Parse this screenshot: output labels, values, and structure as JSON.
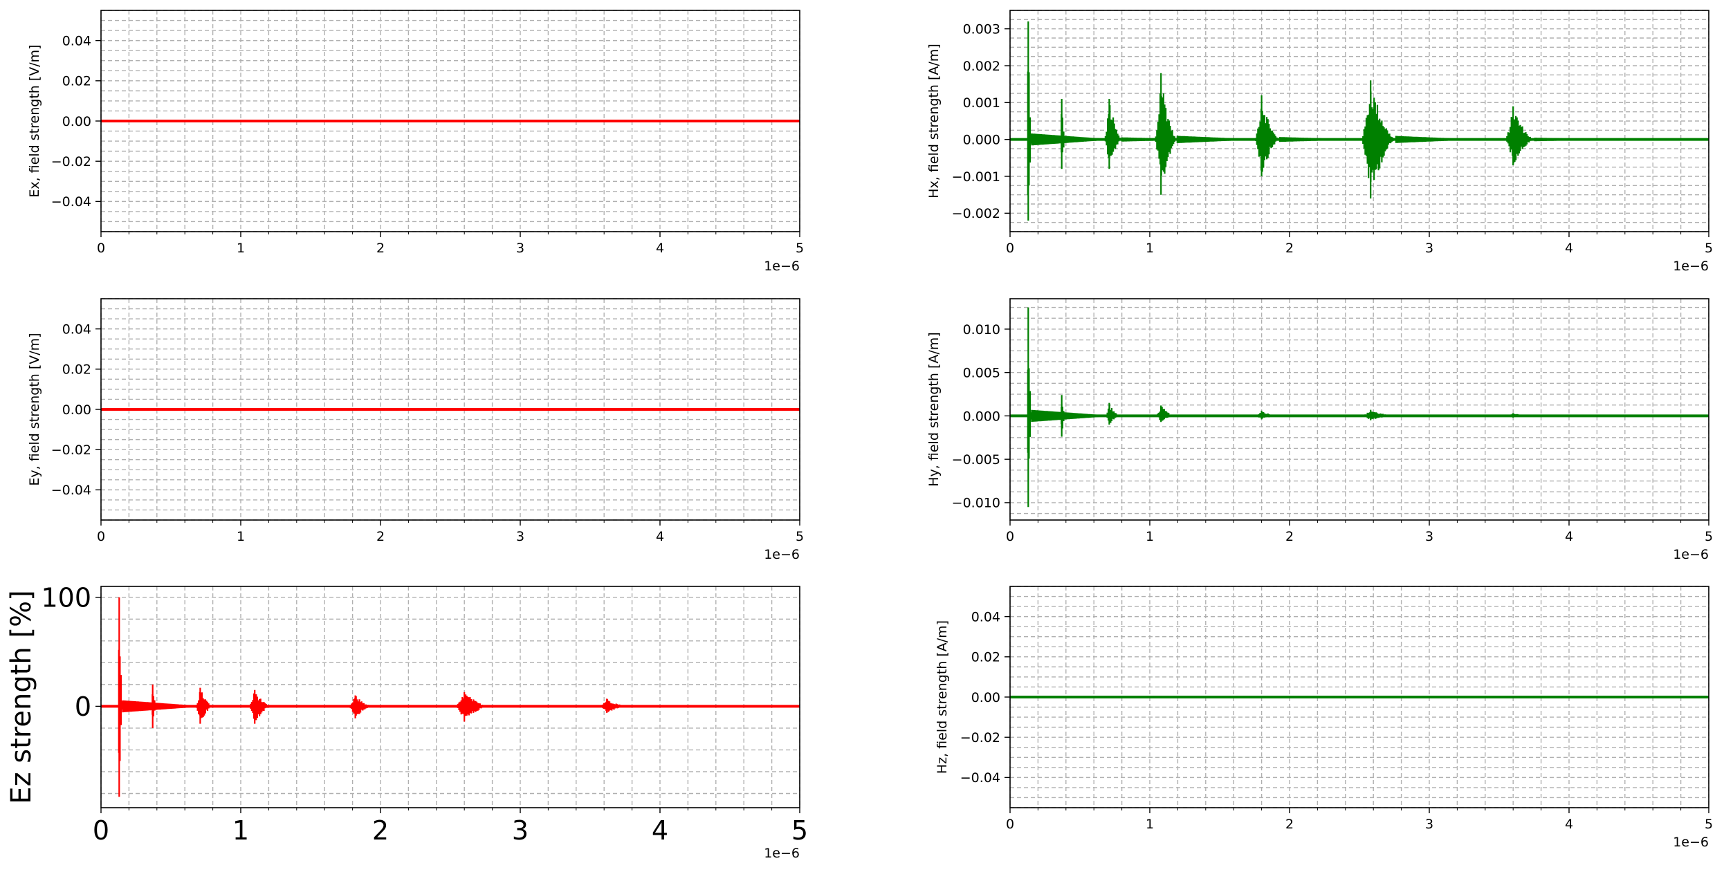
{
  "chart_data": [
    {
      "type": "line",
      "ylabel": "Ex, field strength [V/m]",
      "xlabel": "",
      "x_offset_text": "1e−6",
      "xlim": [
        0,
        5
      ],
      "ylim": [
        -0.055,
        0.055
      ],
      "xticks": [
        "0",
        "1",
        "2",
        "3",
        "4",
        "5"
      ],
      "yticks": [
        {
          "v": 0.04,
          "label": "0.04"
        },
        {
          "v": 0.02,
          "label": "0.02"
        },
        {
          "v": 0.0,
          "label": "0.00"
        },
        {
          "v": -0.02,
          "label": "−0.02"
        },
        {
          "v": -0.04,
          "label": "−0.04"
        }
      ],
      "grid": true,
      "color": "#ff0000",
      "series": [
        {
          "x": [
            0,
            5
          ],
          "y": [
            0,
            0
          ]
        }
      ],
      "bursts": []
    },
    {
      "type": "line",
      "ylabel": "Hx, field strength [A/m]",
      "xlabel": "",
      "x_offset_text": "1e−6",
      "xlim": [
        0,
        5
      ],
      "ylim": [
        -0.0025,
        0.0035
      ],
      "xticks": [
        "0",
        "1",
        "2",
        "3",
        "4",
        "5"
      ],
      "yticks": [
        {
          "v": 0.003,
          "label": "0.003"
        },
        {
          "v": 0.002,
          "label": "0.002"
        },
        {
          "v": 0.001,
          "label": "0.001"
        },
        {
          "v": 0.0,
          "label": "0.000"
        },
        {
          "v": -0.001,
          "label": "−0.001"
        },
        {
          "v": -0.002,
          "label": "−0.002"
        }
      ],
      "grid": true,
      "color": "#008000",
      "series": [
        {
          "x": [
            0,
            5
          ],
          "y": [
            0,
            0
          ]
        }
      ],
      "bursts": [
        {
          "t": 0.13,
          "max": 0.0032,
          "min": -0.0022,
          "width": 0.02
        },
        {
          "t": 0.37,
          "max": 0.0011,
          "min": -0.0008,
          "width": 0.02
        },
        {
          "t": 0.71,
          "max": 0.0011,
          "min": -0.0008,
          "width": 0.07
        },
        {
          "t": 1.08,
          "max": 0.0018,
          "min": -0.0015,
          "width": 0.09
        },
        {
          "t": 1.8,
          "max": 0.0012,
          "min": -0.001,
          "width": 0.1
        },
        {
          "t": 2.58,
          "max": 0.0016,
          "min": -0.0016,
          "width": 0.14
        },
        {
          "t": 3.6,
          "max": 0.0009,
          "min": -0.0007,
          "width": 0.12
        }
      ]
    },
    {
      "type": "line",
      "ylabel": "Ey, field strength [V/m]",
      "xlabel": "",
      "x_offset_text": "1e−6",
      "xlim": [
        0,
        5
      ],
      "ylim": [
        -0.055,
        0.055
      ],
      "xticks": [
        "0",
        "1",
        "2",
        "3",
        "4",
        "5"
      ],
      "yticks": [
        {
          "v": 0.04,
          "label": "0.04"
        },
        {
          "v": 0.02,
          "label": "0.02"
        },
        {
          "v": 0.0,
          "label": "0.00"
        },
        {
          "v": -0.02,
          "label": "−0.02"
        },
        {
          "v": -0.04,
          "label": "−0.04"
        }
      ],
      "grid": true,
      "color": "#ff0000",
      "series": [
        {
          "x": [
            0,
            5
          ],
          "y": [
            0,
            0
          ]
        }
      ],
      "bursts": []
    },
    {
      "type": "line",
      "ylabel": "Hy, field strength [A/m]",
      "xlabel": "",
      "x_offset_text": "1e−6",
      "xlim": [
        0,
        5
      ],
      "ylim": [
        -0.012,
        0.0135
      ],
      "xticks": [
        "0",
        "1",
        "2",
        "3",
        "4",
        "5"
      ],
      "yticks": [
        {
          "v": 0.01,
          "label": "0.010"
        },
        {
          "v": 0.005,
          "label": "0.005"
        },
        {
          "v": 0.0,
          "label": "0.000"
        },
        {
          "v": -0.005,
          "label": "−0.005"
        },
        {
          "v": -0.01,
          "label": "−0.010"
        }
      ],
      "grid": true,
      "color": "#008000",
      "series": [
        {
          "x": [
            0,
            5
          ],
          "y": [
            0,
            0
          ]
        }
      ],
      "bursts": [
        {
          "t": 0.13,
          "max": 0.0125,
          "min": -0.0105,
          "width": 0.02
        },
        {
          "t": 0.37,
          "max": 0.0024,
          "min": -0.0024,
          "width": 0.02
        },
        {
          "t": 0.71,
          "max": 0.0015,
          "min": -0.001,
          "width": 0.06
        },
        {
          "t": 1.08,
          "max": 0.0012,
          "min": -0.0007,
          "width": 0.08
        },
        {
          "t": 1.8,
          "max": 0.0006,
          "min": -0.0004,
          "width": 0.1
        },
        {
          "t": 2.58,
          "max": 0.0007,
          "min": -0.0005,
          "width": 0.14
        },
        {
          "t": 3.6,
          "max": 0.0003,
          "min": -0.0002,
          "width": 0.12
        }
      ]
    },
    {
      "type": "line",
      "ylabel": "Ez strength [%]",
      "xlabel": "",
      "x_offset_text": "1e−6",
      "xlim": [
        0,
        5
      ],
      "ylim": [
        -93,
        110
      ],
      "xticks": [
        "0",
        "1",
        "2",
        "3",
        "4",
        "5"
      ],
      "yticks": [
        {
          "v": 100,
          "label": "100"
        },
        {
          "v": 0,
          "label": "0"
        }
      ],
      "grid": true,
      "large_font": true,
      "color": "#ff0000",
      "series": [
        {
          "x": [
            0,
            5
          ],
          "y": [
            0,
            0
          ]
        }
      ],
      "bursts": [
        {
          "t": 0.13,
          "max": 100,
          "min": -83,
          "width": 0.02
        },
        {
          "t": 0.37,
          "max": 20,
          "min": -20,
          "width": 0.02
        },
        {
          "t": 0.71,
          "max": 17,
          "min": -16,
          "width": 0.07
        },
        {
          "t": 1.1,
          "max": 15,
          "min": -16,
          "width": 0.09
        },
        {
          "t": 1.82,
          "max": 10,
          "min": -11,
          "width": 0.1
        },
        {
          "t": 2.6,
          "max": 13,
          "min": -14,
          "width": 0.14
        },
        {
          "t": 3.62,
          "max": 7,
          "min": -6,
          "width": 0.12
        }
      ]
    },
    {
      "type": "line",
      "ylabel": "Hz, field strength [A/m]",
      "xlabel": "",
      "x_offset_text": "1e−6",
      "xlim": [
        0,
        5
      ],
      "ylim": [
        -0.055,
        0.055
      ],
      "xticks": [
        "0",
        "1",
        "2",
        "3",
        "4",
        "5"
      ],
      "yticks": [
        {
          "v": 0.04,
          "label": "0.04"
        },
        {
          "v": 0.02,
          "label": "0.02"
        },
        {
          "v": 0.0,
          "label": "0.00"
        },
        {
          "v": -0.02,
          "label": "−0.02"
        },
        {
          "v": -0.04,
          "label": "−0.04"
        }
      ],
      "grid": true,
      "color": "#008000",
      "series": [
        {
          "x": [
            0,
            5
          ],
          "y": [
            0,
            0
          ]
        }
      ],
      "bursts": []
    }
  ]
}
